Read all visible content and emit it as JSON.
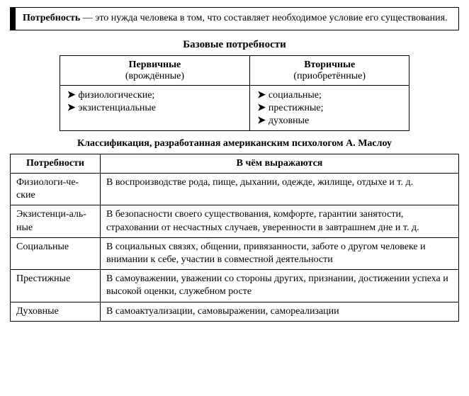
{
  "definition": {
    "term": "Потребность",
    "dash": "—",
    "text": "это нужда человека в том, что составляет необходимое условие его существования."
  },
  "basic": {
    "heading": "Базовые потребности",
    "columns": [
      {
        "title": "Первичные",
        "sub": "(врождённые)",
        "items": [
          "физиологические;",
          "экзистенциальные"
        ]
      },
      {
        "title": "Вторичные",
        "sub": "(приобретённые)",
        "items": [
          "социальные;",
          "престижные;",
          "духовные"
        ]
      }
    ]
  },
  "classification": {
    "title": "Классификация, разработанная американским психологом А. Маслоу",
    "headers": [
      "Потребности",
      "В чём выражаются"
    ],
    "rows": [
      {
        "name": "Физиологи-че-ские",
        "desc": "В воспроизводстве рода, пище, дыхании, одежде, жилище, отдыхе и т. д."
      },
      {
        "name": "Экзистенци-аль-ные",
        "desc": "В безопасности своего существования, комфорте, гарантии занятости, страховании от несчастных случаев, уверенности в завтрашнем дне и т. д."
      },
      {
        "name": "Социальные",
        "desc": "В социальных связях, общении, привязанности, заботе о другом человеке и внимании к себе, участии в совместной деятельности"
      },
      {
        "name": "Престижные",
        "desc": "В самоуважении, уважении со стороны других, признании, достижении успеха и высокой оценки, служебном росте"
      },
      {
        "name": "Духовные",
        "desc": "В самоактуализации, самовыражении, самореализации"
      }
    ]
  },
  "style": {
    "arrow_glyph": "➤"
  }
}
